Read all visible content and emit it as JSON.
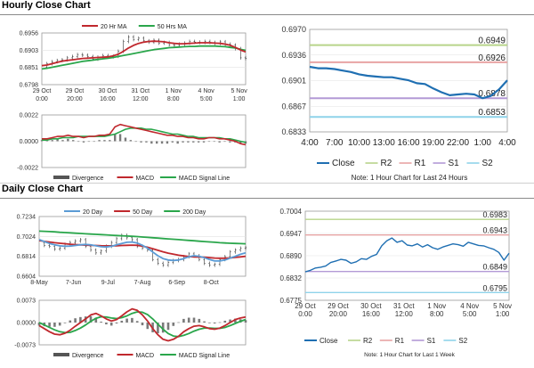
{
  "headings": {
    "hourly": "Hourly Close Chart",
    "daily": "Daily Close Chart"
  },
  "chart_data": [
    {
      "id": "hourly_price",
      "type": "line",
      "title": "",
      "ylim": [
        0.6798,
        0.6956
      ],
      "yticks": [
        "0.6956",
        "0.6903",
        "0.6851",
        "0.6798"
      ],
      "xticks": [
        {
          "pos": 0,
          "line1": "29 Oct",
          "line2": "0:00"
        },
        {
          "pos": 20,
          "line1": "29 Oct",
          "line2": "20:00"
        },
        {
          "pos": 40,
          "line1": "30 Oct",
          "line2": "16:00"
        },
        {
          "pos": 60,
          "line1": "31 Oct",
          "line2": "12:00"
        },
        {
          "pos": 80,
          "line1": "1 Nov",
          "line2": "8:00"
        },
        {
          "pos": 100,
          "line1": "4 Nov",
          "line2": "5:00"
        },
        {
          "pos": 120,
          "line1": "5 Nov",
          "line2": "1:00"
        }
      ],
      "xmax": 124,
      "legend": [
        {
          "name": "20 Hr MA",
          "color": "#c0282d"
        },
        {
          "name": "50 Hrs MA",
          "color": "#2aa64b"
        }
      ],
      "series": [
        {
          "name": "Price",
          "color": "#222222",
          "values": [
            0.6851,
            0.6862,
            0.6868,
            0.6872,
            0.6874,
            0.688,
            0.6884,
            0.689,
            0.6888,
            0.6884,
            0.6876,
            0.6882,
            0.6887,
            0.6883,
            0.6885,
            0.69,
            0.693,
            0.6944,
            0.6936,
            0.694,
            0.6932,
            0.6928,
            0.6934,
            0.6925,
            0.6927,
            0.692,
            0.6918,
            0.6922,
            0.6925,
            0.693,
            0.6928,
            0.6927,
            0.693,
            0.6927,
            0.6924,
            0.6929,
            0.6922,
            0.6919,
            0.6908,
            0.688,
            0.6878
          ]
        },
        {
          "name": "20 Hr MA",
          "color": "#c0282d",
          "values": [
            0.6856,
            0.6858,
            0.6862,
            0.6866,
            0.687,
            0.6872,
            0.6874,
            0.6876,
            0.6878,
            0.6879,
            0.688,
            0.6881,
            0.6882,
            0.6883,
            0.6886,
            0.6891,
            0.69,
            0.691,
            0.6918,
            0.6924,
            0.6928,
            0.693,
            0.6931,
            0.693,
            0.6929,
            0.6926,
            0.6924,
            0.6923,
            0.6923,
            0.6924,
            0.6925,
            0.6926,
            0.6926,
            0.6926,
            0.6925,
            0.6924,
            0.6922,
            0.6918,
            0.6912,
            0.6904,
            0.6898
          ]
        },
        {
          "name": "50 Hrs MA",
          "color": "#2aa64b",
          "values": [
            0.6846,
            0.6848,
            0.6851,
            0.6854,
            0.6857,
            0.686,
            0.6863,
            0.6866,
            0.6869,
            0.6871,
            0.6873,
            0.6875,
            0.6877,
            0.6879,
            0.6881,
            0.6884,
            0.6887,
            0.689,
            0.6893,
            0.6896,
            0.6899,
            0.6902,
            0.6905,
            0.6907,
            0.6909,
            0.6911,
            0.6912,
            0.6913,
            0.6914,
            0.6915,
            0.6915,
            0.6916,
            0.6916,
            0.6916,
            0.6916,
            0.6915,
            0.6914,
            0.6912,
            0.691,
            0.6906,
            0.6903
          ]
        }
      ]
    },
    {
      "id": "hourly_macd",
      "type": "line",
      "ylim": [
        -0.0022,
        0.0022
      ],
      "yticks": [
        "0.0022",
        "0.0000",
        "-0.0022"
      ],
      "legend": [
        {
          "name": "Divergence",
          "color": "#555555",
          "kind": "bar"
        },
        {
          "name": "MACD",
          "color": "#c0282d",
          "kind": "line"
        },
        {
          "name": "MACD Signal Line",
          "color": "#2aa64b",
          "kind": "line"
        }
      ],
      "series": [
        {
          "name": "MACD",
          "color": "#c0282d",
          "values": [
            0.0002,
            0.0002,
            0.0003,
            0.0004,
            0.0004,
            0.0005,
            0.0004,
            0.0004,
            0.0003,
            0.0004,
            0.0004,
            0.0005,
            0.0005,
            0.0006,
            0.0012,
            0.0014,
            0.0013,
            0.0012,
            0.0011,
            0.001,
            0.0009,
            0.0008,
            0.0007,
            0.0006,
            0.0005,
            0.0005,
            0.0004,
            0.0004,
            0.0003,
            0.0003,
            0.0002,
            0.0002,
            0.0003,
            0.0003,
            0.0002,
            0.0002,
            0.0001,
            0.0,
            -0.0002,
            -0.0003
          ]
        },
        {
          "name": "MACD Signal Line",
          "color": "#2aa64b",
          "values": [
            0.0001,
            0.0001,
            0.0002,
            0.0002,
            0.0003,
            0.0003,
            0.0003,
            0.0004,
            0.0004,
            0.0004,
            0.0004,
            0.0004,
            0.0004,
            0.0005,
            0.0006,
            0.0008,
            0.001,
            0.0011,
            0.0011,
            0.0011,
            0.001,
            0.001,
            0.0009,
            0.0008,
            0.0007,
            0.0006,
            0.0006,
            0.0005,
            0.0004,
            0.0004,
            0.0003,
            0.0003,
            0.0003,
            0.0003,
            0.0003,
            0.0002,
            0.0002,
            0.0001,
            0.0,
            -0.0001
          ]
        },
        {
          "name": "Divergence",
          "color": "#555555",
          "values": [
            0.0001,
            0.0001,
            0.0001,
            0.0002,
            0.0001,
            0.0002,
            0.0001,
            0.0,
            -0.0001,
            0.0,
            0.0,
            0.0001,
            0.0001,
            0.0001,
            0.0006,
            0.0006,
            0.0003,
            0.0001,
            0.0,
            -0.0001,
            -0.0001,
            -0.0002,
            -0.0002,
            -0.0002,
            -0.0002,
            -0.0001,
            -0.0002,
            -0.0001,
            -0.0001,
            -0.0001,
            -0.0001,
            -0.0001,
            0.0,
            0.0,
            -0.0001,
            0.0,
            -0.0001,
            -0.0001,
            -0.0002,
            -0.0002
          ]
        }
      ]
    },
    {
      "id": "hourly_24h",
      "type": "line",
      "ylim": [
        0.6833,
        0.697
      ],
      "yticks": [
        "0.6970",
        "0.6936",
        "0.6901",
        "0.6867",
        "0.6833"
      ],
      "xticks": [
        "4:00",
        "7:00",
        "10:00",
        "13:00",
        "16:00",
        "19:00",
        "22:00",
        "1:00",
        "4:00"
      ],
      "xmax": 24,
      "levels": [
        {
          "name": "R2",
          "value": 0.6949,
          "label": "0.6949",
          "color": "#b7d48a"
        },
        {
          "name": "R1",
          "value": 0.6926,
          "label": "0.6926",
          "color": "#e8a4a4"
        },
        {
          "name": "S1",
          "value": 0.6878,
          "label": "0.6878",
          "color": "#b39ad6"
        },
        {
          "name": "S2",
          "value": 0.6853,
          "label": "0.6853",
          "color": "#8fd3ea"
        }
      ],
      "series": [
        {
          "name": "Close",
          "color": "#1f6fb2",
          "values": [
            0.692,
            0.6918,
            0.6918,
            0.6917,
            0.6915,
            0.6913,
            0.691,
            0.6908,
            0.6907,
            0.6906,
            0.6906,
            0.6904,
            0.6902,
            0.6898,
            0.6897,
            0.6891,
            0.6886,
            0.6882,
            0.6883,
            0.6884,
            0.6883,
            0.6878,
            0.6881,
            0.689,
            0.6902
          ]
        }
      ],
      "legend": [
        "Close",
        "R2",
        "R1",
        "S1",
        "S2"
      ],
      "note": "Note: 1 Hour Chart for Last 24 Hours"
    },
    {
      "id": "daily_price",
      "type": "line",
      "ylim": [
        0.6604,
        0.7234
      ],
      "yticks": [
        "0.7234",
        "0.7024",
        "0.6814",
        "0.6604"
      ],
      "xticks": [
        {
          "pos": 0,
          "label": "8-May"
        },
        {
          "pos": 20,
          "label": "7-Jun"
        },
        {
          "pos": 40,
          "label": "9-Jul"
        },
        {
          "pos": 60,
          "label": "7-Aug"
        },
        {
          "pos": 80,
          "label": "6-Sep"
        },
        {
          "pos": 100,
          "label": "8-Oct"
        }
      ],
      "xmax": 120,
      "legend": [
        {
          "name": "20 Day",
          "color": "#5b9bd5"
        },
        {
          "name": "50 Day",
          "color": "#c0282d"
        },
        {
          "name": "200 Day",
          "color": "#2aa64b"
        }
      ],
      "series": [
        {
          "name": "Price",
          "color": "#222222",
          "values": [
            0.696,
            0.693,
            0.692,
            0.689,
            0.69,
            0.694,
            0.696,
            0.6975,
            0.699,
            0.692,
            0.688,
            0.685,
            0.687,
            0.692,
            0.696,
            0.7,
            0.7035,
            0.701,
            0.699,
            0.692,
            0.69,
            0.688,
            0.678,
            0.674,
            0.672,
            0.675,
            0.677,
            0.678,
            0.681,
            0.684,
            0.682,
            0.678,
            0.674,
            0.672,
            0.673,
            0.678,
            0.681,
            0.686,
            0.688,
            0.69,
            0.6905
          ]
        },
        {
          "name": "20 Day",
          "color": "#5b9bd5",
          "values": [
            0.699,
            0.697,
            0.695,
            0.6935,
            0.6925,
            0.692,
            0.6922,
            0.6928,
            0.6936,
            0.694,
            0.6935,
            0.6925,
            0.6915,
            0.6912,
            0.692,
            0.6935,
            0.695,
            0.6962,
            0.6965,
            0.6955,
            0.693,
            0.69,
            0.686,
            0.682,
            0.679,
            0.6775,
            0.677,
            0.6775,
            0.679,
            0.681,
            0.682,
            0.6815,
            0.68,
            0.678,
            0.6765,
            0.6765,
            0.6775,
            0.6795,
            0.6815,
            0.6835,
            0.685
          ]
        },
        {
          "name": "50 Day",
          "color": "#c0282d",
          "values": [
            0.698,
            0.6972,
            0.6965,
            0.6958,
            0.6952,
            0.6947,
            0.6942,
            0.6938,
            0.6935,
            0.6932,
            0.693,
            0.6928,
            0.6926,
            0.6925,
            0.6925,
            0.6926,
            0.6928,
            0.693,
            0.6932,
            0.693,
            0.6922,
            0.691,
            0.6895,
            0.6878,
            0.6862,
            0.6848,
            0.6836,
            0.6826,
            0.6818,
            0.6812,
            0.6808,
            0.6806,
            0.6804,
            0.68,
            0.6796,
            0.6794,
            0.6794,
            0.6797,
            0.6802,
            0.6808,
            0.6815
          ]
        },
        {
          "name": "200 Day",
          "color": "#2aa64b",
          "values": [
            0.708,
            0.7078,
            0.7075,
            0.7072,
            0.7068,
            0.7065,
            0.7062,
            0.7058,
            0.7055,
            0.7052,
            0.7049,
            0.7046,
            0.7043,
            0.704,
            0.7037,
            0.7034,
            0.7031,
            0.7028,
            0.7025,
            0.7022,
            0.7018,
            0.7014,
            0.701,
            0.7006,
            0.7002,
            0.6998,
            0.6994,
            0.699,
            0.6986,
            0.6982,
            0.6978,
            0.6974,
            0.697,
            0.6966,
            0.6962,
            0.6958,
            0.6955,
            0.6952,
            0.695,
            0.6948,
            0.6946
          ]
        }
      ]
    },
    {
      "id": "daily_macd",
      "type": "line",
      "ylim": [
        -0.0073,
        0.0073
      ],
      "yticks": [
        "0.0073",
        "0.0000",
        "-0.0073"
      ],
      "legend": [
        {
          "name": "Divergence",
          "color": "#555555",
          "kind": "bar"
        },
        {
          "name": "MACD",
          "color": "#c0282d",
          "kind": "line"
        },
        {
          "name": "MACD Signal Line",
          "color": "#2aa64b",
          "kind": "line"
        }
      ],
      "series": [
        {
          "name": "MACD",
          "color": "#c0282d",
          "values": [
            -0.001,
            -0.002,
            -0.003,
            -0.0038,
            -0.004,
            -0.0035,
            -0.0025,
            -0.0012,
            0.0,
            0.0012,
            0.0025,
            0.003,
            0.0022,
            0.0012,
            0.0005,
            0.001,
            0.0022,
            0.0035,
            0.0045,
            0.004,
            0.0025,
            0.0005,
            -0.002,
            -0.004,
            -0.0055,
            -0.006,
            -0.0055,
            -0.0045,
            -0.003,
            -0.002,
            -0.0012,
            -0.001,
            -0.0014,
            -0.002,
            -0.0022,
            -0.0018,
            -0.001,
            0.0,
            0.001,
            0.0015,
            0.0018
          ]
        },
        {
          "name": "MACD Signal Line",
          "color": "#2aa64b",
          "values": [
            0.0,
            -0.0008,
            -0.0016,
            -0.0024,
            -0.003,
            -0.0033,
            -0.0032,
            -0.0026,
            -0.0018,
            -0.0008,
            0.0004,
            0.0014,
            0.0019,
            0.0018,
            0.0015,
            0.0013,
            0.0016,
            0.0022,
            0.003,
            0.0035,
            0.0034,
            0.0026,
            0.0012,
            -0.0005,
            -0.0022,
            -0.0036,
            -0.0044,
            -0.0046,
            -0.0042,
            -0.0036,
            -0.0028,
            -0.0022,
            -0.0018,
            -0.0018,
            -0.0019,
            -0.0019,
            -0.0016,
            -0.001,
            -0.0003,
            0.0004,
            0.001
          ]
        },
        {
          "name": "Divergence",
          "color": "#555555",
          "values": [
            -0.001,
            -0.0012,
            -0.0014,
            -0.0014,
            -0.001,
            -0.0002,
            0.0007,
            0.0014,
            0.0018,
            0.002,
            0.0021,
            0.0016,
            0.0003,
            -0.0006,
            -0.001,
            -0.0003,
            0.0006,
            0.0013,
            0.0015,
            0.0005,
            -0.0009,
            -0.0021,
            -0.0032,
            -0.0035,
            -0.0033,
            -0.0024,
            -0.0011,
            0.0001,
            0.0012,
            0.0016,
            0.0016,
            0.0012,
            0.0004,
            -0.0002,
            -0.0003,
            0.0001,
            0.0006,
            0.001,
            0.0013,
            0.0011,
            0.0008
          ]
        }
      ]
    },
    {
      "id": "daily_week",
      "type": "line",
      "ylim": [
        0.6775,
        0.7004
      ],
      "yticks": [
        "0.7004",
        "0.6947",
        "0.6890",
        "0.6832",
        "0.6775"
      ],
      "xticks": [
        {
          "pos": 0,
          "line1": "29 Oct",
          "line2": "0:00"
        },
        {
          "pos": 20,
          "line1": "29 Oct",
          "line2": "20:00"
        },
        {
          "pos": 40,
          "line1": "30 Oct",
          "line2": "16:00"
        },
        {
          "pos": 60,
          "line1": "31 Oct",
          "line2": "12:00"
        },
        {
          "pos": 80,
          "line1": "1 Nov",
          "line2": "8:00"
        },
        {
          "pos": 100,
          "line1": "4 Nov",
          "line2": "5:00"
        },
        {
          "pos": 120,
          "line1": "5 Nov",
          "line2": "1:00"
        }
      ],
      "xmax": 124,
      "levels": [
        {
          "name": "R2",
          "value": 0.6983,
          "label": "0.6983",
          "color": "#b7d48a"
        },
        {
          "name": "R1",
          "value": 0.6943,
          "label": "0.6943",
          "color": "#e8a4a4"
        },
        {
          "name": "S1",
          "value": 0.6849,
          "label": "0.6849",
          "color": "#b39ad6"
        },
        {
          "name": "S2",
          "value": 0.6795,
          "label": "0.6795",
          "color": "#8fd3ea"
        }
      ],
      "series": [
        {
          "name": "Close",
          "color": "#1f6fb2",
          "values": [
            0.6848,
            0.6852,
            0.6858,
            0.686,
            0.6863,
            0.6872,
            0.6876,
            0.688,
            0.6878,
            0.687,
            0.6874,
            0.6882,
            0.688,
            0.6888,
            0.6893,
            0.6915,
            0.6928,
            0.6935,
            0.6924,
            0.6928,
            0.6917,
            0.6915,
            0.692,
            0.6912,
            0.6918,
            0.691,
            0.6906,
            0.6912,
            0.6916,
            0.692,
            0.6918,
            0.6914,
            0.6924,
            0.692,
            0.6916,
            0.6915,
            0.691,
            0.6906,
            0.6898,
            0.6878,
            0.6896
          ]
        }
      ],
      "legend": [
        "Close",
        "R2",
        "R1",
        "S1",
        "S2"
      ],
      "note": "Note: 1 Hour Chart for Last 1 Week"
    }
  ]
}
